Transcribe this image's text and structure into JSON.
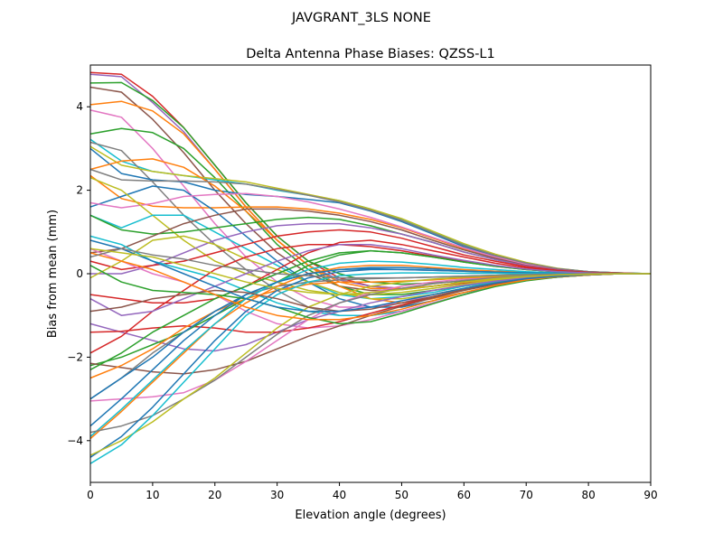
{
  "figure": {
    "suptitle": "JAVGRANT_3LS    NONE"
  },
  "chart_data": {
    "type": "line",
    "title": "Delta Antenna Phase Biases: QZSS-L1",
    "xlabel": "Elevation angle (degrees)",
    "ylabel": "Bias from mean (mm)",
    "xlim": [
      0,
      90
    ],
    "ylim": [
      -5,
      5
    ],
    "xticks": [
      0,
      10,
      20,
      30,
      40,
      50,
      60,
      70,
      80,
      90
    ],
    "yticks": [
      -4,
      -2,
      0,
      2,
      4
    ],
    "grid": false,
    "legend": "none",
    "x": [
      0,
      5,
      10,
      15,
      20,
      25,
      30,
      35,
      40,
      45,
      50,
      55,
      60,
      65,
      70,
      75,
      80,
      85,
      90
    ],
    "series": [
      {
        "color": "#d62728",
        "values": [
          4.82,
          4.78,
          4.25,
          3.5,
          2.6,
          1.7,
          0.9,
          0.3,
          -0.1,
          -0.3,
          -0.35,
          -0.3,
          -0.22,
          -0.15,
          -0.1,
          -0.05,
          -0.02,
          0,
          0
        ]
      },
      {
        "color": "#9467bd",
        "values": [
          4.78,
          4.72,
          4.1,
          3.4,
          2.5,
          1.6,
          0.8,
          0.2,
          -0.15,
          -0.3,
          -0.35,
          -0.3,
          -0.2,
          -0.15,
          -0.1,
          -0.05,
          -0.02,
          0,
          0
        ]
      },
      {
        "color": "#2ca02c",
        "values": [
          4.57,
          4.58,
          4.15,
          3.5,
          2.6,
          1.7,
          0.9,
          0.3,
          0,
          -0.2,
          -0.25,
          -0.22,
          -0.18,
          -0.12,
          -0.08,
          -0.04,
          -0.02,
          0,
          0
        ]
      },
      {
        "color": "#8c564b",
        "values": [
          4.47,
          4.35,
          3.7,
          2.9,
          2.0,
          1.2,
          0.5,
          0,
          -0.3,
          -0.4,
          -0.38,
          -0.3,
          -0.2,
          -0.14,
          -0.08,
          -0.04,
          -0.02,
          0,
          0
        ]
      },
      {
        "color": "#ff7f0e",
        "values": [
          4.05,
          4.13,
          3.9,
          3.35,
          2.5,
          1.6,
          0.8,
          0.2,
          -0.2,
          -0.35,
          -0.35,
          -0.3,
          -0.2,
          -0.14,
          -0.08,
          -0.04,
          -0.02,
          0,
          0
        ]
      },
      {
        "color": "#e377c2",
        "values": [
          3.92,
          3.75,
          3.0,
          2.1,
          1.2,
          0.4,
          -0.2,
          -0.6,
          -0.8,
          -0.8,
          -0.7,
          -0.5,
          -0.35,
          -0.2,
          -0.1,
          -0.05,
          -0.02,
          0,
          0
        ]
      },
      {
        "color": "#2ca02c",
        "values": [
          3.35,
          3.48,
          3.38,
          3.0,
          2.3,
          1.5,
          0.7,
          0.1,
          -0.3,
          -0.5,
          -0.5,
          -0.4,
          -0.3,
          -0.2,
          -0.1,
          -0.05,
          -0.02,
          0,
          0
        ]
      },
      {
        "color": "#17becf",
        "values": [
          3.22,
          2.7,
          2.45,
          2.35,
          2.25,
          2.15,
          2.0,
          1.88,
          1.75,
          1.55,
          1.3,
          1.0,
          0.7,
          0.45,
          0.25,
          0.12,
          0.05,
          0.02,
          0
        ]
      },
      {
        "color": "#7f7f7f",
        "values": [
          3.15,
          2.95,
          2.2,
          1.4,
          0.7,
          0.1,
          -0.4,
          -0.8,
          -1.0,
          -1.0,
          -0.9,
          -0.7,
          -0.5,
          -0.3,
          -0.15,
          -0.08,
          -0.03,
          0,
          0
        ]
      },
      {
        "color": "#bcbd22",
        "values": [
          3.05,
          2.6,
          2.45,
          2.35,
          2.28,
          2.2,
          2.05,
          1.9,
          1.75,
          1.55,
          1.32,
          1.02,
          0.72,
          0.47,
          0.27,
          0.13,
          0.05,
          0.02,
          0
        ]
      },
      {
        "color": "#1f77b4",
        "values": [
          3.0,
          2.4,
          2.25,
          2.2,
          2.0,
          1.9,
          1.85,
          1.78,
          1.7,
          1.5,
          1.25,
          0.95,
          0.65,
          0.42,
          0.25,
          0.12,
          0.05,
          0.02,
          0
        ]
      },
      {
        "color": "#ff7f0e",
        "values": [
          2.5,
          2.7,
          2.75,
          2.55,
          2.1,
          1.5,
          0.8,
          0.2,
          -0.3,
          -0.6,
          -0.7,
          -0.6,
          -0.45,
          -0.3,
          -0.15,
          -0.08,
          -0.03,
          0,
          0
        ]
      },
      {
        "color": "#7f7f7f",
        "values": [
          2.5,
          2.25,
          2.22,
          2.22,
          2.2,
          2.15,
          2.02,
          1.88,
          1.72,
          1.52,
          1.28,
          0.98,
          0.68,
          0.44,
          0.25,
          0.12,
          0.05,
          0.02,
          0
        ]
      },
      {
        "color": "#ff7f0e",
        "values": [
          2.35,
          1.8,
          1.62,
          1.58,
          1.58,
          1.6,
          1.6,
          1.55,
          1.45,
          1.3,
          1.1,
          0.85,
          0.6,
          0.4,
          0.22,
          0.1,
          0.04,
          0.01,
          0
        ]
      },
      {
        "color": "#1f77b4",
        "values": [
          1.6,
          1.85,
          2.1,
          2.0,
          1.5,
          0.9,
          0.3,
          -0.2,
          -0.6,
          -0.8,
          -0.8,
          -0.65,
          -0.45,
          -0.3,
          -0.15,
          -0.08,
          -0.03,
          0,
          0
        ]
      },
      {
        "color": "#e377c2",
        "values": [
          1.7,
          1.58,
          1.68,
          1.85,
          1.9,
          1.92,
          1.85,
          1.72,
          1.55,
          1.35,
          1.12,
          0.87,
          0.62,
          0.4,
          0.22,
          0.1,
          0.04,
          0.01,
          0
        ]
      },
      {
        "color": "#bcbd22",
        "values": [
          2.3,
          2.0,
          1.4,
          0.8,
          0.3,
          0,
          -0.2,
          -0.4,
          -0.5,
          -0.5,
          -0.45,
          -0.35,
          -0.25,
          -0.15,
          -0.08,
          -0.04,
          -0.02,
          0,
          0
        ]
      },
      {
        "color": "#17becf",
        "values": [
          1.4,
          1.1,
          1.4,
          1.4,
          1.0,
          0.6,
          0.2,
          -0.2,
          -0.5,
          -0.6,
          -0.55,
          -0.45,
          -0.3,
          -0.2,
          -0.1,
          -0.05,
          -0.02,
          0,
          0
        ]
      },
      {
        "color": "#2ca02c",
        "values": [
          1.4,
          1.05,
          0.95,
          1.0,
          1.1,
          1.2,
          1.3,
          1.35,
          1.3,
          1.15,
          0.95,
          0.75,
          0.52,
          0.34,
          0.19,
          0.09,
          0.03,
          0.01,
          0
        ]
      },
      {
        "color": "#8c564b",
        "values": [
          0.5,
          0.6,
          0.9,
          1.2,
          1.4,
          1.55,
          1.55,
          1.5,
          1.4,
          1.25,
          1.05,
          0.8,
          0.57,
          0.37,
          0.2,
          0.1,
          0.04,
          0.01,
          0
        ]
      },
      {
        "color": "#9467bd",
        "values": [
          0.0,
          0.0,
          0.2,
          0.5,
          0.8,
          1.0,
          1.15,
          1.2,
          1.2,
          1.1,
          0.95,
          0.75,
          0.52,
          0.34,
          0.19,
          0.09,
          0.03,
          0.01,
          0
        ]
      },
      {
        "color": "#d62728",
        "values": [
          0.3,
          0.1,
          0.2,
          0.3,
          0.5,
          0.7,
          0.9,
          1.0,
          1.05,
          1.0,
          0.85,
          0.65,
          0.45,
          0.3,
          0.17,
          0.08,
          0.03,
          0.01,
          0
        ]
      },
      {
        "color": "#bcbd22",
        "values": [
          -0.1,
          0.3,
          0.8,
          0.9,
          0.7,
          0.35,
          0.1,
          -0.2,
          -0.45,
          -0.6,
          -0.6,
          -0.5,
          -0.35,
          -0.22,
          -0.12,
          -0.06,
          -0.02,
          0,
          0
        ]
      },
      {
        "color": "#17becf",
        "values": [
          0.9,
          0.7,
          0.3,
          0.1,
          -0.1,
          -0.4,
          -0.7,
          -0.9,
          -1.0,
          -1.0,
          -0.9,
          -0.7,
          -0.5,
          -0.3,
          -0.15,
          -0.08,
          -0.03,
          0,
          0
        ]
      },
      {
        "color": "#e377c2",
        "values": [
          0.6,
          0.3,
          0.0,
          -0.2,
          -0.5,
          -0.9,
          -1.2,
          -1.3,
          -1.25,
          -1.1,
          -0.9,
          -0.7,
          -0.5,
          -0.3,
          -0.15,
          -0.08,
          -0.03,
          0,
          0
        ]
      },
      {
        "color": "#d62728",
        "values": [
          -0.5,
          -0.6,
          -0.7,
          -0.7,
          -0.6,
          -0.3,
          0.1,
          0.5,
          0.75,
          0.8,
          0.7,
          0.55,
          0.4,
          0.25,
          0.14,
          0.07,
          0.03,
          0.01,
          0
        ]
      },
      {
        "color": "#9467bd",
        "values": [
          -1.2,
          -1.4,
          -1.6,
          -1.8,
          -1.85,
          -1.7,
          -1.4,
          -1.1,
          -0.9,
          -0.7,
          -0.55,
          -0.4,
          -0.28,
          -0.18,
          -0.1,
          -0.05,
          -0.02,
          0,
          0
        ]
      },
      {
        "color": "#d62728",
        "values": [
          -1.4,
          -1.38,
          -1.3,
          -1.25,
          -1.3,
          -1.4,
          -1.4,
          -1.3,
          -1.15,
          -0.95,
          -0.75,
          -0.55,
          -0.38,
          -0.24,
          -0.13,
          -0.06,
          -0.02,
          0,
          0
        ]
      },
      {
        "color": "#d62728",
        "values": [
          -1.9,
          -1.5,
          -0.9,
          -0.4,
          0.1,
          0.4,
          0.6,
          0.7,
          0.7,
          0.65,
          0.55,
          0.42,
          0.3,
          0.19,
          0.1,
          0.05,
          0.02,
          0,
          0
        ]
      },
      {
        "color": "#2ca02c",
        "values": [
          -2.2,
          -2.0,
          -1.7,
          -1.4,
          -1.0,
          -0.6,
          -0.2,
          0.2,
          0.45,
          0.55,
          0.5,
          0.4,
          0.28,
          0.18,
          0.1,
          0.05,
          0.02,
          0,
          0
        ]
      },
      {
        "color": "#8c564b",
        "values": [
          -2.15,
          -2.25,
          -2.35,
          -2.4,
          -2.3,
          -2.1,
          -1.8,
          -1.5,
          -1.25,
          -1.0,
          -0.78,
          -0.58,
          -0.4,
          -0.25,
          -0.14,
          -0.07,
          -0.03,
          0,
          0
        ]
      },
      {
        "color": "#e377c2",
        "values": [
          -3.05,
          -3.0,
          -2.95,
          -2.85,
          -2.55,
          -2.1,
          -1.6,
          -1.1,
          -0.7,
          -0.45,
          -0.3,
          -0.2,
          -0.13,
          -0.08,
          -0.04,
          -0.02,
          -0.01,
          0,
          0
        ]
      },
      {
        "color": "#2ca02c",
        "values": [
          -2.3,
          -1.9,
          -1.4,
          -1.0,
          -0.6,
          -0.3,
          0,
          0.3,
          0.5,
          0.55,
          0.5,
          0.4,
          0.28,
          0.18,
          0.1,
          0.05,
          0.02,
          0,
          0
        ]
      },
      {
        "color": "#ff7f0e",
        "values": [
          -2.5,
          -2.2,
          -1.8,
          -1.3,
          -0.9,
          -0.6,
          -0.4,
          -0.25,
          -0.2,
          -0.2,
          -0.18,
          -0.15,
          -0.1,
          -0.07,
          -0.04,
          -0.02,
          -0.01,
          0,
          0
        ]
      },
      {
        "color": "#7f7f7f",
        "values": [
          -3.0,
          -2.5,
          -1.9,
          -1.4,
          -0.9,
          -0.5,
          -0.3,
          -0.2,
          -0.15,
          -0.12,
          -0.1,
          -0.08,
          -0.06,
          -0.04,
          -0.02,
          -0.01,
          0,
          0,
          0
        ]
      },
      {
        "color": "#1f77b4",
        "values": [
          -3.0,
          -2.5,
          -2.0,
          -1.4,
          -0.9,
          -0.5,
          -0.2,
          0,
          0.1,
          0.15,
          0.15,
          0.12,
          0.09,
          0.06,
          0.03,
          0.02,
          0.01,
          0,
          0
        ]
      },
      {
        "color": "#ff7f0e",
        "values": [
          -3.95,
          -3.3,
          -2.6,
          -1.9,
          -1.2,
          -0.7,
          -0.3,
          0,
          0.15,
          0.2,
          0.2,
          0.15,
          0.1,
          0.06,
          0.03,
          0.02,
          0.01,
          0,
          0
        ]
      },
      {
        "color": "#17becf",
        "values": [
          -3.9,
          -3.25,
          -2.55,
          -1.85,
          -1.2,
          -0.6,
          -0.2,
          0.1,
          0.25,
          0.3,
          0.28,
          0.22,
          0.15,
          0.1,
          0.05,
          0.02,
          0.01,
          0,
          0
        ]
      },
      {
        "color": "#7f7f7f",
        "values": [
          -3.8,
          -3.65,
          -3.4,
          -3.0,
          -2.55,
          -2.0,
          -1.45,
          -1.0,
          -0.7,
          -0.5,
          -0.35,
          -0.24,
          -0.16,
          -0.1,
          -0.05,
          -0.02,
          -0.01,
          0,
          0
        ]
      },
      {
        "color": "#1f77b4",
        "values": [
          -3.65,
          -3.0,
          -2.3,
          -1.6,
          -1.0,
          -0.5,
          -0.2,
          0,
          0.1,
          0.12,
          0.1,
          0.08,
          0.06,
          0.04,
          0.02,
          0.01,
          0,
          0,
          0
        ]
      },
      {
        "color": "#1f77b4",
        "values": [
          -4.4,
          -3.9,
          -3.2,
          -2.4,
          -1.6,
          -0.9,
          -0.4,
          -0.1,
          0.05,
          0.1,
          0.1,
          0.08,
          0.06,
          0.04,
          0.02,
          0.01,
          0,
          0,
          0
        ]
      },
      {
        "color": "#bcbd22",
        "values": [
          -4.35,
          -4.0,
          -3.55,
          -3.0,
          -2.5,
          -1.9,
          -1.3,
          -0.8,
          -0.5,
          -0.3,
          -0.2,
          -0.13,
          -0.08,
          -0.05,
          -0.03,
          -0.01,
          0,
          0,
          0
        ]
      },
      {
        "color": "#17becf",
        "values": [
          -4.55,
          -4.1,
          -3.4,
          -2.6,
          -1.8,
          -1.0,
          -0.5,
          -0.2,
          -0.05,
          0,
          0.02,
          0.02,
          0.01,
          0.01,
          0,
          0,
          0,
          0,
          0
        ]
      },
      {
        "color": "#9467bd",
        "values": [
          -0.6,
          -1.0,
          -0.9,
          -0.6,
          -0.3,
          0.0,
          0.3,
          0.55,
          0.7,
          0.7,
          0.6,
          0.45,
          0.32,
          0.2,
          0.11,
          0.05,
          0.02,
          0,
          0
        ]
      },
      {
        "color": "#8c564b",
        "values": [
          -0.9,
          -0.8,
          -0.6,
          -0.5,
          -0.4,
          -0.45,
          -0.6,
          -0.8,
          -0.9,
          -0.85,
          -0.7,
          -0.55,
          -0.38,
          -0.24,
          -0.13,
          -0.06,
          -0.02,
          0,
          0
        ]
      },
      {
        "color": "#2ca02c",
        "values": [
          0.2,
          -0.2,
          -0.4,
          -0.45,
          -0.5,
          -0.6,
          -0.8,
          -1.05,
          -1.2,
          -1.15,
          -0.95,
          -0.72,
          -0.5,
          -0.31,
          -0.17,
          -0.08,
          -0.03,
          0,
          0
        ]
      },
      {
        "color": "#ff7f0e",
        "values": [
          0.5,
          0.3,
          0.1,
          -0.2,
          -0.5,
          -0.8,
          -1.0,
          -1.1,
          -1.1,
          -1.0,
          -0.85,
          -0.65,
          -0.45,
          -0.28,
          -0.15,
          -0.07,
          -0.03,
          0,
          0
        ]
      },
      {
        "color": "#1f77b4",
        "values": [
          0.8,
          0.6,
          0.3,
          0.0,
          -0.3,
          -0.6,
          -0.8,
          -0.9,
          -0.9,
          -0.8,
          -0.65,
          -0.5,
          -0.35,
          -0.22,
          -0.12,
          -0.06,
          -0.02,
          0,
          0
        ]
      },
      {
        "color": "#7f7f7f",
        "values": [
          0.4,
          0.6,
          0.45,
          0.35,
          0.2,
          0.1,
          0.0,
          -0.05,
          -0.1,
          -0.1,
          -0.1,
          -0.08,
          -0.06,
          -0.04,
          -0.02,
          -0.01,
          0,
          0,
          0
        ]
      },
      {
        "color": "#bcbd22",
        "values": [
          0.6,
          0.5,
          0.4,
          0.2,
          0.0,
          -0.2,
          -0.35,
          -0.45,
          -0.5,
          -0.45,
          -0.38,
          -0.3,
          -0.2,
          -0.12,
          -0.07,
          -0.03,
          -0.01,
          0,
          0
        ]
      }
    ]
  }
}
